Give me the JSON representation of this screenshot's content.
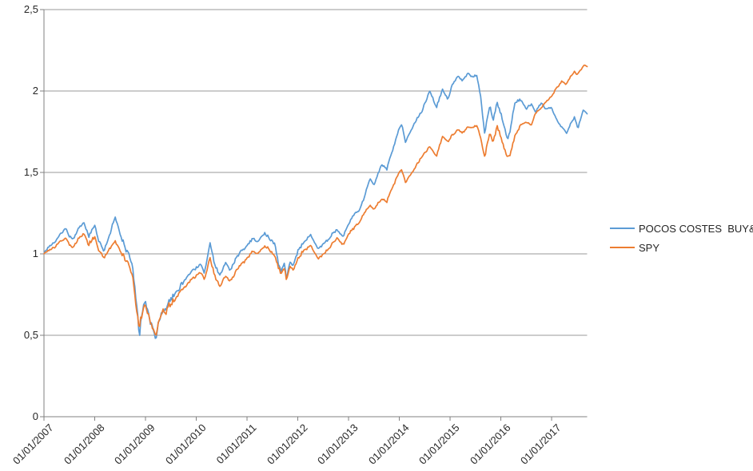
{
  "page": {
    "background": "#ffffff"
  },
  "colors": {
    "series_blue": "#5B9BD5",
    "series_orange": "#ED7D31",
    "gridline": "#9a9a9a",
    "axis_line": "#808080",
    "axis_text": "#262626"
  },
  "legend": {
    "items": [
      {
        "label": "POCOS COSTES  BUY&HOLD",
        "color": "#5B9BD5"
      },
      {
        "label": "SPY",
        "color": "#ED7D31"
      }
    ]
  },
  "chart_data": {
    "type": "line",
    "title": "",
    "xlabel": "",
    "ylabel": "",
    "grid": "horizontal",
    "legend_position": "right",
    "x_axis": {
      "min": 2007.0,
      "max": 2017.7,
      "tick_years": [
        2007,
        2008,
        2009,
        2010,
        2011,
        2012,
        2013,
        2014,
        2015,
        2016,
        2017
      ],
      "tick_labels": [
        "01/01/2007",
        "01/01/2008",
        "01/01/2009",
        "01/01/2010",
        "01/01/2011",
        "01/01/2012",
        "01/01/2013",
        "01/01/2014",
        "01/01/2015",
        "01/01/2016",
        "01/01/2017"
      ]
    },
    "y_axis": {
      "min": 0,
      "max": 2.5,
      "step": 0.5,
      "tick_labels": [
        "0",
        "0,5",
        "1",
        "1,5",
        "2",
        "2,5"
      ]
    },
    "series": [
      {
        "name": "POCOS COSTES  BUY&HOLD",
        "color": "#5B9BD5",
        "anchors": [
          [
            2007.0,
            1.0
          ],
          [
            2007.08,
            1.04
          ],
          [
            2007.2,
            1.07
          ],
          [
            2007.3,
            1.11
          ],
          [
            2007.42,
            1.16
          ],
          [
            2007.5,
            1.11
          ],
          [
            2007.58,
            1.09
          ],
          [
            2007.68,
            1.15
          ],
          [
            2007.78,
            1.19
          ],
          [
            2007.88,
            1.11
          ],
          [
            2008.0,
            1.17
          ],
          [
            2008.07,
            1.09
          ],
          [
            2008.18,
            1.01
          ],
          [
            2008.3,
            1.13
          ],
          [
            2008.4,
            1.23
          ],
          [
            2008.5,
            1.12
          ],
          [
            2008.6,
            1.04
          ],
          [
            2008.68,
            0.99
          ],
          [
            2008.75,
            0.9
          ],
          [
            2008.82,
            0.7
          ],
          [
            2008.88,
            0.5
          ],
          [
            2008.93,
            0.63
          ],
          [
            2009.0,
            0.7
          ],
          [
            2009.08,
            0.6
          ],
          [
            2009.2,
            0.485
          ],
          [
            2009.3,
            0.62
          ],
          [
            2009.4,
            0.67
          ],
          [
            2009.5,
            0.73
          ],
          [
            2009.6,
            0.76
          ],
          [
            2009.7,
            0.81
          ],
          [
            2009.8,
            0.85
          ],
          [
            2009.9,
            0.89
          ],
          [
            2010.0,
            0.91
          ],
          [
            2010.08,
            0.94
          ],
          [
            2010.16,
            0.875
          ],
          [
            2010.27,
            1.065
          ],
          [
            2010.38,
            0.92
          ],
          [
            2010.47,
            0.865
          ],
          [
            2010.58,
            0.95
          ],
          [
            2010.67,
            0.9
          ],
          [
            2010.78,
            0.97
          ],
          [
            2010.88,
            1.01
          ],
          [
            2011.0,
            1.05
          ],
          [
            2011.12,
            1.1
          ],
          [
            2011.2,
            1.07
          ],
          [
            2011.35,
            1.13
          ],
          [
            2011.45,
            1.09
          ],
          [
            2011.55,
            1.07
          ],
          [
            2011.62,
            0.93
          ],
          [
            2011.68,
            0.88
          ],
          [
            2011.73,
            0.95
          ],
          [
            2011.78,
            0.845
          ],
          [
            2011.85,
            0.96
          ],
          [
            2011.92,
            0.92
          ],
          [
            2012.0,
            1.01
          ],
          [
            2012.1,
            1.06
          ],
          [
            2012.25,
            1.115
          ],
          [
            2012.4,
            1.03
          ],
          [
            2012.5,
            1.06
          ],
          [
            2012.6,
            1.09
          ],
          [
            2012.7,
            1.13
          ],
          [
            2012.78,
            1.15
          ],
          [
            2012.88,
            1.1
          ],
          [
            2013.0,
            1.18
          ],
          [
            2013.1,
            1.24
          ],
          [
            2013.2,
            1.265
          ],
          [
            2013.3,
            1.33
          ],
          [
            2013.42,
            1.47
          ],
          [
            2013.5,
            1.42
          ],
          [
            2013.65,
            1.55
          ],
          [
            2013.75,
            1.52
          ],
          [
            2013.85,
            1.62
          ],
          [
            2014.0,
            1.77
          ],
          [
            2014.05,
            1.8
          ],
          [
            2014.12,
            1.69
          ],
          [
            2014.3,
            1.8
          ],
          [
            2014.45,
            1.88
          ],
          [
            2014.6,
            2.0
          ],
          [
            2014.73,
            1.9
          ],
          [
            2014.85,
            2.01
          ],
          [
            2014.95,
            1.95
          ],
          [
            2015.05,
            2.04
          ],
          [
            2015.15,
            2.09
          ],
          [
            2015.25,
            2.06
          ],
          [
            2015.35,
            2.11
          ],
          [
            2015.45,
            2.08
          ],
          [
            2015.52,
            2.1
          ],
          [
            2015.6,
            1.98
          ],
          [
            2015.68,
            1.74
          ],
          [
            2015.78,
            1.91
          ],
          [
            2015.85,
            1.82
          ],
          [
            2015.93,
            1.92
          ],
          [
            2016.0,
            1.87
          ],
          [
            2016.08,
            1.76
          ],
          [
            2016.13,
            1.7
          ],
          [
            2016.18,
            1.75
          ],
          [
            2016.27,
            1.92
          ],
          [
            2016.38,
            1.95
          ],
          [
            2016.5,
            1.89
          ],
          [
            2016.6,
            1.92
          ],
          [
            2016.68,
            1.87
          ],
          [
            2016.8,
            1.93
          ],
          [
            2016.88,
            1.89
          ],
          [
            2017.0,
            1.9
          ],
          [
            2017.1,
            1.82
          ],
          [
            2017.2,
            1.78
          ],
          [
            2017.3,
            1.74
          ],
          [
            2017.38,
            1.8
          ],
          [
            2017.45,
            1.84
          ],
          [
            2017.52,
            1.77
          ],
          [
            2017.62,
            1.88
          ],
          [
            2017.7,
            1.86
          ]
        ]
      },
      {
        "name": "SPY",
        "color": "#ED7D31",
        "anchors": [
          [
            2007.0,
            1.0
          ],
          [
            2007.08,
            1.02
          ],
          [
            2007.2,
            1.04
          ],
          [
            2007.3,
            1.07
          ],
          [
            2007.42,
            1.1
          ],
          [
            2007.5,
            1.06
          ],
          [
            2007.58,
            1.04
          ],
          [
            2007.68,
            1.09
          ],
          [
            2007.78,
            1.12
          ],
          [
            2007.88,
            1.06
          ],
          [
            2008.0,
            1.1
          ],
          [
            2008.07,
            1.03
          ],
          [
            2008.18,
            0.97
          ],
          [
            2008.3,
            1.04
          ],
          [
            2008.4,
            1.08
          ],
          [
            2008.5,
            1.02
          ],
          [
            2008.6,
            0.96
          ],
          [
            2008.68,
            0.93
          ],
          [
            2008.75,
            0.85
          ],
          [
            2008.82,
            0.66
          ],
          [
            2008.88,
            0.55
          ],
          [
            2008.93,
            0.63
          ],
          [
            2009.0,
            0.68
          ],
          [
            2009.08,
            0.59
          ],
          [
            2009.2,
            0.495
          ],
          [
            2009.3,
            0.62
          ],
          [
            2009.4,
            0.65
          ],
          [
            2009.5,
            0.7
          ],
          [
            2009.6,
            0.73
          ],
          [
            2009.7,
            0.775
          ],
          [
            2009.8,
            0.805
          ],
          [
            2009.9,
            0.845
          ],
          [
            2010.0,
            0.865
          ],
          [
            2010.08,
            0.89
          ],
          [
            2010.16,
            0.84
          ],
          [
            2010.27,
            0.975
          ],
          [
            2010.38,
            0.85
          ],
          [
            2010.47,
            0.8
          ],
          [
            2010.58,
            0.87
          ],
          [
            2010.67,
            0.83
          ],
          [
            2010.78,
            0.89
          ],
          [
            2010.88,
            0.93
          ],
          [
            2011.0,
            0.97
          ],
          [
            2011.12,
            1.02
          ],
          [
            2011.2,
            1.0
          ],
          [
            2011.35,
            1.05
          ],
          [
            2011.45,
            1.02
          ],
          [
            2011.55,
            1.0
          ],
          [
            2011.62,
            0.9
          ],
          [
            2011.68,
            0.87
          ],
          [
            2011.73,
            0.92
          ],
          [
            2011.78,
            0.84
          ],
          [
            2011.85,
            0.93
          ],
          [
            2011.92,
            0.9
          ],
          [
            2012.0,
            0.96
          ],
          [
            2012.1,
            1.01
          ],
          [
            2012.25,
            1.05
          ],
          [
            2012.4,
            0.97
          ],
          [
            2012.5,
            1.0
          ],
          [
            2012.6,
            1.03
          ],
          [
            2012.7,
            1.07
          ],
          [
            2012.78,
            1.1
          ],
          [
            2012.88,
            1.05
          ],
          [
            2013.0,
            1.12
          ],
          [
            2013.1,
            1.16
          ],
          [
            2013.2,
            1.19
          ],
          [
            2013.3,
            1.24
          ],
          [
            2013.42,
            1.3
          ],
          [
            2013.5,
            1.27
          ],
          [
            2013.65,
            1.34
          ],
          [
            2013.75,
            1.32
          ],
          [
            2013.85,
            1.4
          ],
          [
            2014.0,
            1.5
          ],
          [
            2014.05,
            1.52
          ],
          [
            2014.12,
            1.44
          ],
          [
            2014.3,
            1.52
          ],
          [
            2014.45,
            1.6
          ],
          [
            2014.6,
            1.66
          ],
          [
            2014.73,
            1.6
          ],
          [
            2014.85,
            1.72
          ],
          [
            2014.95,
            1.69
          ],
          [
            2015.05,
            1.73
          ],
          [
            2015.15,
            1.76
          ],
          [
            2015.25,
            1.74
          ],
          [
            2015.35,
            1.78
          ],
          [
            2015.45,
            1.77
          ],
          [
            2015.52,
            1.79
          ],
          [
            2015.6,
            1.72
          ],
          [
            2015.68,
            1.6
          ],
          [
            2015.78,
            1.74
          ],
          [
            2015.85,
            1.69
          ],
          [
            2015.93,
            1.78
          ],
          [
            2016.0,
            1.72
          ],
          [
            2016.08,
            1.63
          ],
          [
            2016.13,
            1.59
          ],
          [
            2016.18,
            1.61
          ],
          [
            2016.27,
            1.72
          ],
          [
            2016.38,
            1.79
          ],
          [
            2016.5,
            1.81
          ],
          [
            2016.6,
            1.79
          ],
          [
            2016.68,
            1.86
          ],
          [
            2016.8,
            1.9
          ],
          [
            2016.88,
            1.93
          ],
          [
            2017.0,
            1.97
          ],
          [
            2017.1,
            2.02
          ],
          [
            2017.2,
            2.06
          ],
          [
            2017.28,
            2.04
          ],
          [
            2017.38,
            2.09
          ],
          [
            2017.45,
            2.12
          ],
          [
            2017.5,
            2.1
          ],
          [
            2017.58,
            2.13
          ],
          [
            2017.65,
            2.16
          ],
          [
            2017.7,
            2.15
          ]
        ]
      }
    ]
  }
}
